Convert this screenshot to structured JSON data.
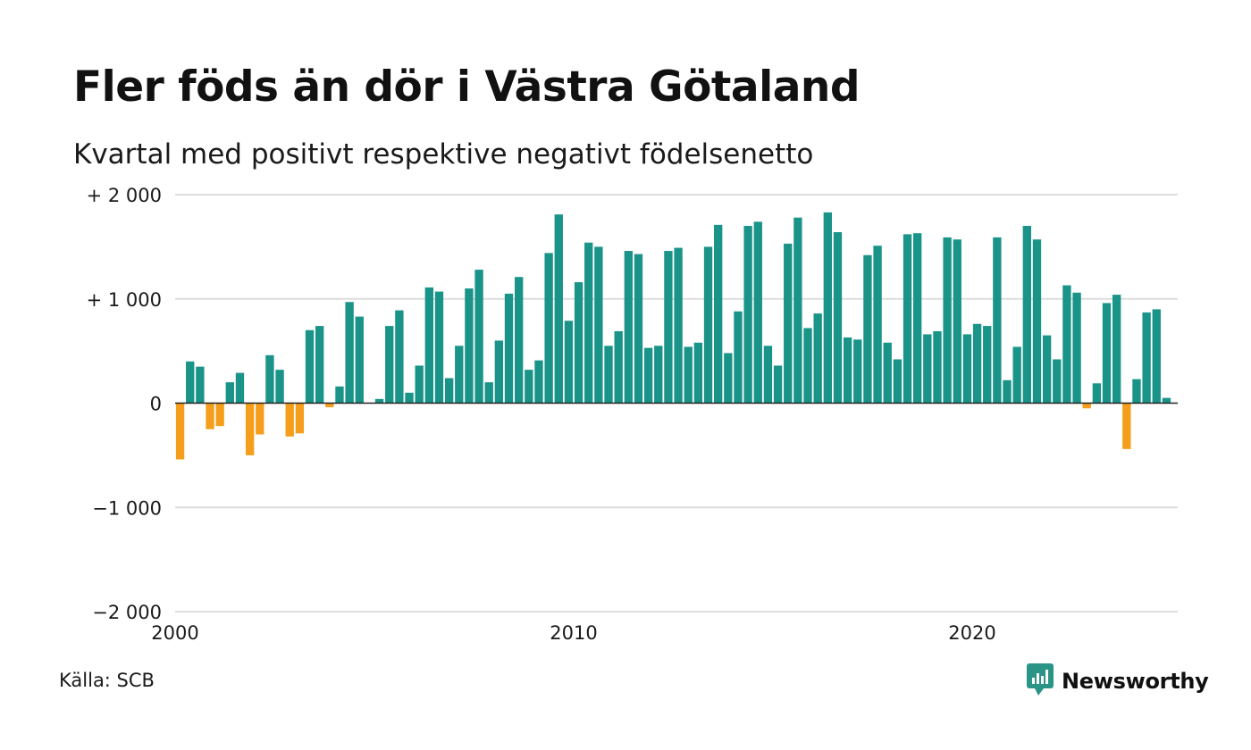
{
  "title": "Fler föds än dör i Västra Götaland",
  "subtitle": "Kvartal med positivt respektive negativt födelsenetto",
  "source": "Källa: SCB",
  "brand": "Newsworthy",
  "colors": {
    "positive": "#1a9488",
    "negative": "#f59e1c",
    "grid": "#dddddd",
    "zero_line": "#222222",
    "brand": "#2a9487"
  },
  "chart_data": {
    "type": "bar",
    "x_start": "2000 Q1",
    "ylim": [
      -2000,
      2000
    ],
    "y_ticks": [
      {
        "value": 2000,
        "label": "+ 2 000"
      },
      {
        "value": 1000,
        "label": "+ 1 000"
      },
      {
        "value": 0,
        "label": "0"
      },
      {
        "value": -1000,
        "label": "−1 000"
      },
      {
        "value": -2000,
        "label": "−2 000"
      }
    ],
    "x_ticks": [
      {
        "year": 2000,
        "label": "2000"
      },
      {
        "year": 2010,
        "label": "2010"
      },
      {
        "year": 2020,
        "label": "2020"
      }
    ],
    "grid": true,
    "values": [
      -540,
      400,
      350,
      -250,
      -220,
      200,
      290,
      -500,
      -300,
      460,
      320,
      -320,
      -290,
      700,
      740,
      -40,
      160,
      970,
      830,
      0,
      40,
      740,
      890,
      100,
      360,
      1110,
      1070,
      240,
      550,
      1100,
      1280,
      200,
      600,
      1050,
      1210,
      320,
      410,
      1440,
      1810,
      790,
      1160,
      1540,
      1500,
      550,
      690,
      1460,
      1430,
      530,
      550,
      1460,
      1490,
      540,
      580,
      1500,
      1710,
      480,
      880,
      1700,
      1740,
      550,
      360,
      1530,
      1780,
      720,
      860,
      1830,
      1640,
      630,
      610,
      1420,
      1510,
      580,
      420,
      1620,
      1630,
      660,
      690,
      1590,
      1570,
      660,
      760,
      740,
      1590,
      220,
      540,
      1700,
      1570,
      650,
      420,
      1130,
      1060,
      -50,
      190,
      960,
      1040,
      -440,
      230,
      870,
      900,
      50
    ]
  }
}
